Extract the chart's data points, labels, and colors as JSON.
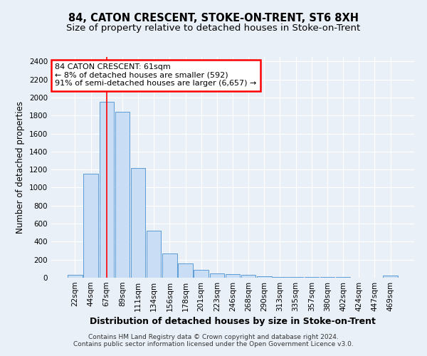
{
  "title": "84, CATON CRESCENT, STOKE-ON-TRENT, ST6 8XH",
  "subtitle": "Size of property relative to detached houses in Stoke-on-Trent",
  "xlabel": "Distribution of detached houses by size in Stoke-on-Trent",
  "ylabel": "Number of detached properties",
  "bin_labels": [
    "22sqm",
    "44sqm",
    "67sqm",
    "89sqm",
    "111sqm",
    "134sqm",
    "156sqm",
    "178sqm",
    "201sqm",
    "223sqm",
    "246sqm",
    "268sqm",
    "290sqm",
    "313sqm",
    "335sqm",
    "357sqm",
    "380sqm",
    "402sqm",
    "424sqm",
    "447sqm",
    "469sqm"
  ],
  "bar_heights": [
    30,
    1150,
    1950,
    1840,
    1220,
    520,
    265,
    155,
    85,
    50,
    40,
    30,
    12,
    10,
    8,
    6,
    5,
    4,
    3,
    2,
    20
  ],
  "bar_color": "#c9ddf5",
  "bar_edge_color": "#5b9bd5",
  "vline_x": 2.0,
  "vline_color": "red",
  "annotation_text": "84 CATON CRESCENT: 61sqm\n← 8% of detached houses are smaller (592)\n91% of semi-detached houses are larger (6,657) →",
  "annotation_box_color": "white",
  "annotation_box_edge_color": "red",
  "ylim": [
    0,
    2450
  ],
  "yticks": [
    0,
    200,
    400,
    600,
    800,
    1000,
    1200,
    1400,
    1600,
    1800,
    2000,
    2200,
    2400
  ],
  "footer_line1": "Contains HM Land Registry data © Crown copyright and database right 2024.",
  "footer_line2": "Contains public sector information licensed under the Open Government Licence v3.0.",
  "bg_color": "#eaf0f8",
  "plot_bg_color": "#eaf0f8",
  "title_fontsize": 10.5,
  "subtitle_fontsize": 9.5,
  "tick_fontsize": 7.5,
  "ylabel_fontsize": 8.5,
  "xlabel_fontsize": 9
}
